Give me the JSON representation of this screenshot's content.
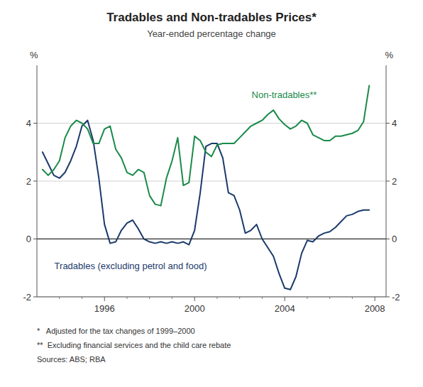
{
  "chart_data": {
    "type": "line",
    "title": "Tradables and Non-tradables Prices*",
    "subtitle": "Year-ended percentage change",
    "ylabel": "%",
    "y2label": "%",
    "footnotes": [
      "*   Adjusted for the tax changes of 1999–2000",
      "**  Excluding financial services and the child care rebate",
      "Sources: ABS; RBA"
    ],
    "x": [
      1993.25,
      1993.5,
      1993.75,
      1994.0,
      1994.25,
      1994.5,
      1994.75,
      1995.0,
      1995.25,
      1995.5,
      1995.75,
      1996.0,
      1996.25,
      1996.5,
      1996.75,
      1997.0,
      1997.25,
      1997.5,
      1997.75,
      1998.0,
      1998.25,
      1998.5,
      1998.75,
      1999.0,
      1999.25,
      1999.5,
      1999.75,
      2000.0,
      2000.25,
      2000.5,
      2000.75,
      2001.0,
      2001.25,
      2001.5,
      2001.75,
      2002.0,
      2002.25,
      2002.5,
      2002.75,
      2003.0,
      2003.25,
      2003.5,
      2003.75,
      2004.0,
      2004.25,
      2004.5,
      2004.75,
      2005.0,
      2005.25,
      2005.5,
      2005.75,
      2006.0,
      2006.25,
      2006.5,
      2006.75,
      2007.0,
      2007.25,
      2007.5,
      2007.75
    ],
    "series": [
      {
        "name": "Tradables (excluding petrol and food)",
        "color": "#1a3a6b",
        "values": [
          3.0,
          2.6,
          2.2,
          2.1,
          2.3,
          2.7,
          3.2,
          3.9,
          4.1,
          3.4,
          2.1,
          0.5,
          -0.15,
          -0.1,
          0.3,
          0.55,
          0.65,
          0.35,
          0.0,
          -0.1,
          -0.15,
          -0.1,
          -0.15,
          -0.1,
          -0.15,
          -0.1,
          -0.2,
          0.3,
          1.6,
          3.2,
          3.3,
          3.3,
          2.8,
          1.6,
          1.5,
          1.0,
          0.2,
          0.3,
          0.5,
          0.0,
          -0.3,
          -0.6,
          -1.2,
          -1.7,
          -1.75,
          -1.3,
          -0.5,
          -0.05,
          -0.1,
          0.1,
          0.2,
          0.25,
          0.4,
          0.6,
          0.8,
          0.85,
          0.95,
          1.0,
          1.0
        ]
      },
      {
        "name": "Non-tradables**",
        "color": "#1a8a4a",
        "values": [
          2.4,
          2.2,
          2.4,
          2.7,
          3.5,
          3.9,
          4.1,
          4.0,
          3.8,
          3.3,
          3.3,
          3.8,
          3.9,
          3.1,
          2.8,
          2.3,
          2.2,
          2.4,
          2.3,
          1.5,
          1.2,
          1.15,
          2.1,
          2.7,
          3.5,
          1.85,
          1.95,
          3.55,
          3.4,
          3.0,
          2.85,
          3.25,
          3.3,
          3.3,
          3.3,
          3.5,
          3.7,
          3.9,
          4.0,
          4.1,
          4.3,
          4.45,
          4.15,
          3.95,
          3.8,
          3.9,
          4.1,
          4.0,
          3.6,
          3.5,
          3.4,
          3.4,
          3.55,
          3.55,
          3.6,
          3.65,
          3.75,
          4.05,
          5.3
        ]
      }
    ],
    "xlim": [
      1993.0,
      2008.5
    ],
    "xticks": [
      1996,
      2000,
      2004,
      2008
    ],
    "minor_xticks": [
      1994,
      1995,
      1997,
      1998,
      1999,
      2001,
      2002,
      2003,
      2005,
      2006,
      2007
    ],
    "ylim": [
      -2,
      6
    ],
    "yticks": [
      -2,
      0,
      2,
      4
    ],
    "y2lim": [
      -2,
      6
    ],
    "y2ticks": [
      -2,
      0,
      2,
      4
    ],
    "grid": true
  }
}
